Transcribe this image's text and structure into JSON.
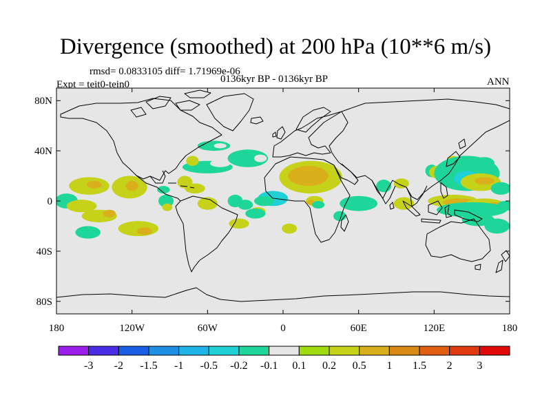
{
  "title": "Divergence (smoothed) at 200 hPa (10**6 m/s)",
  "subtitle_stats": "rmsd= 0.0833105 diff= 1.71969e-06",
  "subtitle_period": "0136kyr BP - 0136kyr BP",
  "subtitle_expt": "Expt = teit0-tein0",
  "subtitle_season": "ANN",
  "chart_data": {
    "type": "heatmap",
    "projection": "cylindrical equidistant",
    "xlim": [
      -180,
      180
    ],
    "ylim": [
      -90,
      90
    ],
    "x_ticks": [
      {
        "value": -180,
        "label": "180"
      },
      {
        "value": -120,
        "label": "120W"
      },
      {
        "value": -60,
        "label": "60W"
      },
      {
        "value": 0,
        "label": "0"
      },
      {
        "value": 60,
        "label": "60E"
      },
      {
        "value": 120,
        "label": "120E"
      },
      {
        "value": 180,
        "label": "180"
      }
    ],
    "y_ticks": [
      {
        "value": 80,
        "label": "80N"
      },
      {
        "value": 40,
        "label": "40N"
      },
      {
        "value": 0,
        "label": "0"
      },
      {
        "value": -40,
        "label": "40S"
      },
      {
        "value": -80,
        "label": "80S"
      }
    ],
    "background_color": "#e6e6e6",
    "colorbar": {
      "colors": [
        "#9b1fe8",
        "#4a2de6",
        "#1a5ee6",
        "#1f8fe6",
        "#1fb4e6",
        "#1fd0d6",
        "#1fd69a",
        "#e6e6e6",
        "#a0dc10",
        "#c6d21a",
        "#d9b01c",
        "#d98a14",
        "#e05e10",
        "#e03a10",
        "#e00a0a"
      ],
      "labels": [
        "-3",
        "-2",
        "-1.5",
        "-1",
        "-0.5",
        "-0.2",
        "-0.1",
        "0.1",
        "0.2",
        "0.5",
        "1",
        "1.5",
        "2",
        "3"
      ]
    },
    "regions": [
      {
        "lon": -154,
        "lat": 12,
        "rlon": 16,
        "rlat": 7,
        "value": 0.2
      },
      {
        "lon": -150,
        "lat": 13,
        "rlon": 6,
        "rlat": 3,
        "value": 0.5
      },
      {
        "lon": -122,
        "lat": 11,
        "rlon": 14,
        "rlat": 9,
        "value": 0.2
      },
      {
        "lon": -120,
        "lat": 12,
        "rlon": 5,
        "rlat": 4,
        "value": 0.5
      },
      {
        "lon": -172,
        "lat": 0,
        "rlon": 9,
        "rlat": 6,
        "value": -0.2
      },
      {
        "lon": -160,
        "lat": -4,
        "rlon": 12,
        "rlat": 5,
        "value": 0.2
      },
      {
        "lon": -146,
        "lat": -12,
        "rlon": 14,
        "rlat": 5,
        "value": 0.2
      },
      {
        "lon": -138,
        "lat": -10,
        "rlon": 5,
        "rlat": 3,
        "value": 0.5
      },
      {
        "lon": -115,
        "lat": -22,
        "rlon": 16,
        "rlat": 6,
        "value": 0.2
      },
      {
        "lon": -110,
        "lat": -24,
        "rlon": 6,
        "rlat": 3,
        "value": 0.5
      },
      {
        "lon": -155,
        "lat": -25,
        "rlon": 10,
        "rlat": 5,
        "value": -0.2
      },
      {
        "lon": -93,
        "lat": 0,
        "rlon": 6,
        "rlat": 5,
        "value": -0.2
      },
      {
        "lon": -92,
        "lat": -5,
        "rlon": 4,
        "rlat": 3,
        "value": 0.2
      },
      {
        "lon": -95,
        "lat": 9,
        "rlon": 5,
        "rlat": 3,
        "value": -0.2
      },
      {
        "lon": -78,
        "lat": 15,
        "rlon": 6,
        "rlat": 5,
        "value": 0.2
      },
      {
        "lon": -70,
        "lat": 10,
        "rlon": 8,
        "rlat": 4,
        "value": 0.2
      },
      {
        "lon": -60,
        "lat": 27,
        "rlon": 20,
        "rlat": 5,
        "value": -0.2
      },
      {
        "lon": -50,
        "lat": 30,
        "rlon": 8,
        "rlat": 3,
        "value": -0.1
      },
      {
        "lon": -72,
        "lat": 32,
        "rlon": 5,
        "rlat": 4,
        "value": 0.2
      },
      {
        "lon": -55,
        "lat": 44,
        "rlon": 13,
        "rlat": 4,
        "value": -0.2
      },
      {
        "lon": -50,
        "lat": 44,
        "rlon": 5,
        "rlat": 2,
        "value": -0.1
      },
      {
        "lon": -60,
        "lat": -2,
        "rlon": 8,
        "rlat": 5,
        "value": 0.2
      },
      {
        "lon": -38,
        "lat": 0,
        "rlon": 6,
        "rlat": 5,
        "value": -0.2
      },
      {
        "lon": -35,
        "lat": -18,
        "rlon": 8,
        "rlat": 4,
        "value": 0.2
      },
      {
        "lon": -20,
        "lat": -8,
        "rlon": 6,
        "rlat": 3,
        "value": 0.2
      },
      {
        "lon": -28,
        "lat": 34,
        "rlon": 16,
        "rlat": 7,
        "value": -0.2
      },
      {
        "lon": -18,
        "lat": 34,
        "rlon": 5,
        "rlat": 3,
        "value": -0.1
      },
      {
        "lon": -8,
        "lat": 2,
        "rlon": 12,
        "rlat": 6,
        "value": -0.5
      },
      {
        "lon": -15,
        "lat": 0,
        "rlon": 8,
        "rlat": 4,
        "value": -0.2
      },
      {
        "lon": -30,
        "lat": -3,
        "rlon": 6,
        "rlat": 4,
        "value": -0.2
      },
      {
        "lon": -22,
        "lat": -10,
        "rlon": 8,
        "rlat": 4,
        "value": -0.2
      },
      {
        "lon": 22,
        "lat": 19,
        "rlon": 25,
        "rlat": 13,
        "value": 0.2
      },
      {
        "lon": 20,
        "lat": 20,
        "rlon": 16,
        "rlat": 8,
        "value": 0.5
      },
      {
        "lon": 25,
        "lat": 0,
        "rlon": 7,
        "rlat": 4,
        "value": 0.2
      },
      {
        "lon": 22,
        "lat": -1,
        "rlon": 3,
        "rlat": 2,
        "value": 0.5
      },
      {
        "lon": 28,
        "lat": -3,
        "rlon": 5,
        "rlat": 3,
        "value": -0.2
      },
      {
        "lon": 5,
        "lat": -22,
        "rlon": 6,
        "rlat": 4,
        "value": 0.2
      },
      {
        "lon": 45,
        "lat": -12,
        "rlon": 5,
        "rlat": 4,
        "value": -0.2
      },
      {
        "lon": 60,
        "lat": -2,
        "rlon": 15,
        "rlat": 6,
        "value": -0.2
      },
      {
        "lon": 80,
        "lat": 12,
        "rlon": 6,
        "rlat": 5,
        "value": -0.2
      },
      {
        "lon": 94,
        "lat": 14,
        "rlon": 6,
        "rlat": 4,
        "value": 0.2
      },
      {
        "lon": 118,
        "lat": 24,
        "rlon": 5,
        "rlat": 5,
        "value": -0.2
      },
      {
        "lon": 122,
        "lat": 23,
        "rlon": 6,
        "rlat": 5,
        "value": 0.2
      },
      {
        "lon": 135,
        "lat": 31,
        "rlon": 5,
        "rlat": 5,
        "value": 0.2
      },
      {
        "lon": 160,
        "lat": 30,
        "rlon": 8,
        "rlat": 5,
        "value": -0.2
      },
      {
        "lon": 146,
        "lat": 22,
        "rlon": 26,
        "rlat": 14,
        "value": -0.2
      },
      {
        "lon": 146,
        "lat": 18,
        "rlon": 10,
        "rlat": 6,
        "value": -0.5
      },
      {
        "lon": 157,
        "lat": 15,
        "rlon": 16,
        "rlat": 7,
        "value": 0.2
      },
      {
        "lon": 160,
        "lat": 16,
        "rlon": 8,
        "rlat": 3,
        "value": 0.5
      },
      {
        "lon": 173,
        "lat": 10,
        "rlon": 8,
        "rlat": 5,
        "value": -0.2
      },
      {
        "lon": 96,
        "lat": -2,
        "rlon": 8,
        "rlat": 5,
        "value": 0.2
      },
      {
        "lon": 135,
        "lat": 0,
        "rlon": 20,
        "rlat": 5,
        "value": 0.2
      },
      {
        "lon": 140,
        "lat": -1,
        "rlon": 13,
        "rlat": 3,
        "value": 0.5
      },
      {
        "lon": 150,
        "lat": -2,
        "rlon": 5,
        "rlat": 2,
        "value": 1
      },
      {
        "lon": 160,
        "lat": -3,
        "rlon": 16,
        "rlat": 5,
        "value": 0.2
      },
      {
        "lon": 168,
        "lat": -4,
        "rlon": 8,
        "rlat": 3,
        "value": 0.5
      },
      {
        "lon": 176,
        "lat": -4,
        "rlon": 6,
        "rlat": 4,
        "value": -0.2
      },
      {
        "lon": 150,
        "lat": -7,
        "rlon": 28,
        "rlat": 6,
        "value": -0.2
      },
      {
        "lon": 155,
        "lat": -15,
        "rlon": 13,
        "rlat": 5,
        "value": -0.2
      },
      {
        "lon": 170,
        "lat": -20,
        "rlon": 10,
        "rlat": 6,
        "value": -0.2
      }
    ]
  }
}
